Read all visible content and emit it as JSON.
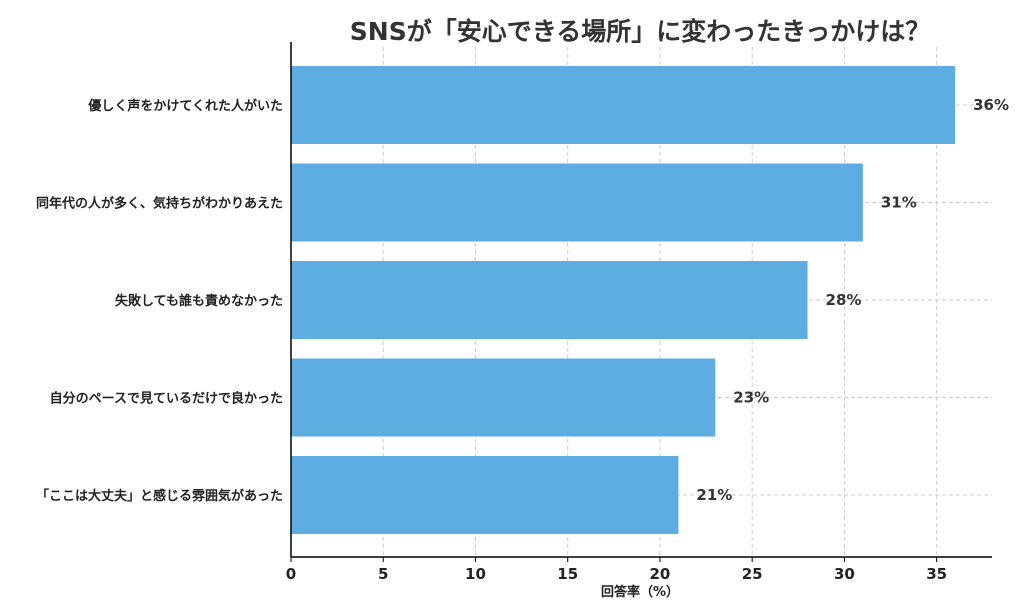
{
  "chart_data": {
    "type": "bar",
    "orientation": "horizontal",
    "title": "SNSが「安心できる場所」に変わったきっかけは？",
    "xlabel": "回答率（%）",
    "ylabel": "",
    "categories": [
      "優しく声をかけてくれた人がいた",
      "同年代の人が多く、気持ちがわかりあえた",
      "失敗しても誰も責めなかった",
      "自分のペースで見ているだけで良かった",
      "「ここは大丈夫」と感じる雰囲気があった"
    ],
    "values": [
      36,
      31,
      28,
      23,
      21
    ],
    "value_labels": [
      "36%",
      "31%",
      "28%",
      "23%",
      "21%"
    ],
    "xlim": [
      0,
      38
    ],
    "xticks": [
      0,
      5,
      10,
      15,
      20,
      25,
      30,
      35
    ],
    "xtick_labels": [
      "0",
      "5",
      "10",
      "15",
      "20",
      "25",
      "30",
      "35"
    ],
    "grid": true,
    "bar_color": "#5DADE2",
    "grid_color": "#cccccc"
  }
}
